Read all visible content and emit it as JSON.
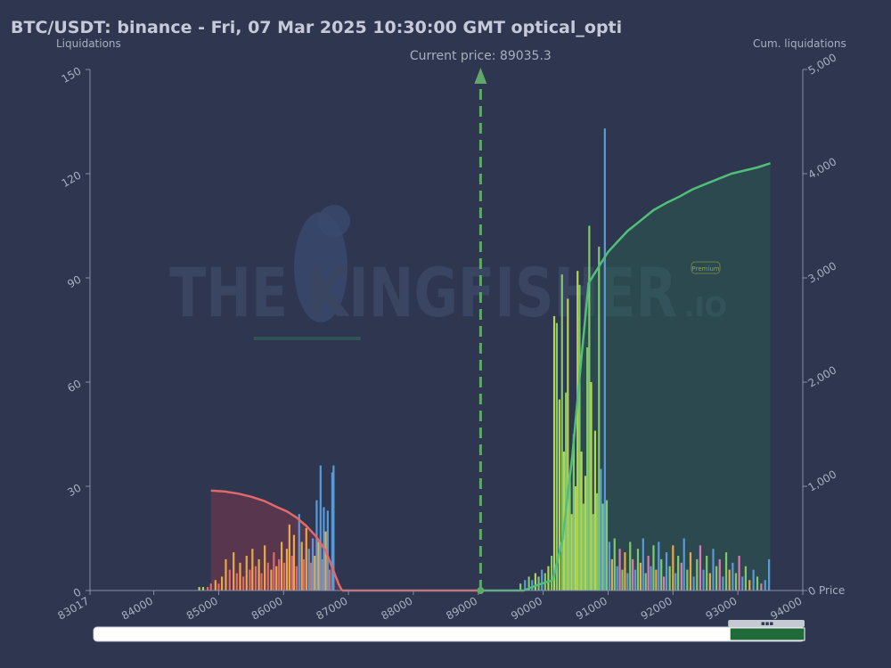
{
  "title": "BTC/USDT: binance - Fri, 07 Mar 2025 10:30:00 GMT optical_opti",
  "current_price_label": "Current price: 89035.3",
  "watermark": {
    "main": "THE KINGFISHER",
    "suffix": ".IO",
    "badge": "Premium"
  },
  "colors": {
    "background": "#2e3650",
    "short_cum": "#e06a6a",
    "long_cum": "#4fbf7a",
    "arrow": "#5fa86a",
    "scrollbar_thumb": "#1f6b3a"
  },
  "chart_data": {
    "type": "bar",
    "xlabel": "Price",
    "ylabel_left": "Liquidations",
    "ylabel_right": "Cum. liquidations",
    "xlim": [
      83017,
      94000
    ],
    "ylim_left": [
      0,
      150
    ],
    "ylim_right": [
      0,
      5000
    ],
    "x_ticks": [
      "83017",
      "84000",
      "85000",
      "86000",
      "87000",
      "88000",
      "89000",
      "90000",
      "91000",
      "92000",
      "93000",
      "94000"
    ],
    "y_left_ticks": [
      "0",
      "30",
      "60",
      "90",
      "120",
      "150"
    ],
    "y_right_ticks": [
      "0",
      "1,000",
      "2,000",
      "3,000",
      "4,000",
      "5,000"
    ],
    "current_price": 89035.3,
    "bars": [
      {
        "x": 84700,
        "y": 1,
        "c": "#b4d455"
      },
      {
        "x": 84760,
        "y": 1,
        "c": "#b4d455"
      },
      {
        "x": 84830,
        "y": 1,
        "c": "#e06a6a"
      },
      {
        "x": 84880,
        "y": 2,
        "c": "#e06a6a"
      },
      {
        "x": 84950,
        "y": 3,
        "c": "#e8a94a"
      },
      {
        "x": 85000,
        "y": 2,
        "c": "#e06a6a"
      },
      {
        "x": 85050,
        "y": 4,
        "c": "#e8a94a"
      },
      {
        "x": 85110,
        "y": 9,
        "c": "#e8a94a"
      },
      {
        "x": 85170,
        "y": 6,
        "c": "#e06a6a"
      },
      {
        "x": 85230,
        "y": 11,
        "c": "#e8a94a"
      },
      {
        "x": 85280,
        "y": 5,
        "c": "#e06a6a"
      },
      {
        "x": 85330,
        "y": 8,
        "c": "#e8a94a"
      },
      {
        "x": 85380,
        "y": 4,
        "c": "#e06a6a"
      },
      {
        "x": 85430,
        "y": 10,
        "c": "#e8a94a"
      },
      {
        "x": 85480,
        "y": 6,
        "c": "#e06a6a"
      },
      {
        "x": 85520,
        "y": 12,
        "c": "#e8a94a"
      },
      {
        "x": 85570,
        "y": 7,
        "c": "#e06a6a"
      },
      {
        "x": 85620,
        "y": 9,
        "c": "#e8a94a"
      },
      {
        "x": 85660,
        "y": 5,
        "c": "#e06a6a"
      },
      {
        "x": 85710,
        "y": 13,
        "c": "#e8a94a"
      },
      {
        "x": 85760,
        "y": 8,
        "c": "#e06a6a"
      },
      {
        "x": 85810,
        "y": 6,
        "c": "#e8a94a"
      },
      {
        "x": 85850,
        "y": 11,
        "c": "#e06a6a"
      },
      {
        "x": 85890,
        "y": 7,
        "c": "#e8a94a"
      },
      {
        "x": 85930,
        "y": 9,
        "c": "#e06a6a"
      },
      {
        "x": 85970,
        "y": 14,
        "c": "#e8a94a"
      },
      {
        "x": 86010,
        "y": 8,
        "c": "#e06a6a"
      },
      {
        "x": 86050,
        "y": 12,
        "c": "#e8a94a"
      },
      {
        "x": 86090,
        "y": 19,
        "c": "#e8a94a"
      },
      {
        "x": 86130,
        "y": 10,
        "c": "#e06a6a"
      },
      {
        "x": 86160,
        "y": 16,
        "c": "#e8a94a"
      },
      {
        "x": 86200,
        "y": 7,
        "c": "#e06a6a"
      },
      {
        "x": 86240,
        "y": 22,
        "c": "#5b9bd5"
      },
      {
        "x": 86280,
        "y": 14,
        "c": "#e8a94a"
      },
      {
        "x": 86310,
        "y": 9,
        "c": "#e06a6a"
      },
      {
        "x": 86350,
        "y": 18,
        "c": "#e8a94a"
      },
      {
        "x": 86390,
        "y": 12,
        "c": "#5b9bd5"
      },
      {
        "x": 86420,
        "y": 8,
        "c": "#e06a6a"
      },
      {
        "x": 86450,
        "y": 15,
        "c": "#5b9bd5"
      },
      {
        "x": 86480,
        "y": 10,
        "c": "#e8a94a"
      },
      {
        "x": 86510,
        "y": 26,
        "c": "#5b9bd5"
      },
      {
        "x": 86540,
        "y": 14,
        "c": "#e8a94a"
      },
      {
        "x": 86570,
        "y": 36,
        "c": "#5b9bd5"
      },
      {
        "x": 86600,
        "y": 9,
        "c": "#e06a6a"
      },
      {
        "x": 86620,
        "y": 24,
        "c": "#5b9bd5"
      },
      {
        "x": 86650,
        "y": 17,
        "c": "#e8a94a"
      },
      {
        "x": 86680,
        "y": 23,
        "c": "#5b9bd5"
      },
      {
        "x": 86710,
        "y": 6,
        "c": "#e06a6a"
      },
      {
        "x": 86750,
        "y": 34,
        "c": "#5b9bd5"
      },
      {
        "x": 86770,
        "y": 36,
        "c": "#5b9bd5"
      },
      {
        "x": 89650,
        "y": 2,
        "c": "#82c870"
      },
      {
        "x": 89720,
        "y": 3,
        "c": "#5b9bd5"
      },
      {
        "x": 89780,
        "y": 4,
        "c": "#82c870"
      },
      {
        "x": 89830,
        "y": 3,
        "c": "#5b9bd5"
      },
      {
        "x": 89880,
        "y": 5,
        "c": "#b4d455"
      },
      {
        "x": 89930,
        "y": 4,
        "c": "#82c870"
      },
      {
        "x": 89980,
        "y": 6,
        "c": "#5b9bd5"
      },
      {
        "x": 90030,
        "y": 5,
        "c": "#82c870"
      },
      {
        "x": 90080,
        "y": 7,
        "c": "#b4d455"
      },
      {
        "x": 90130,
        "y": 10,
        "c": "#82c870"
      },
      {
        "x": 90170,
        "y": 79,
        "c": "#b4d455"
      },
      {
        "x": 90210,
        "y": 77,
        "c": "#82c870"
      },
      {
        "x": 90250,
        "y": 55,
        "c": "#b4d455"
      },
      {
        "x": 90290,
        "y": 91,
        "c": "#82c870"
      },
      {
        "x": 90320,
        "y": 40,
        "c": "#b4d455"
      },
      {
        "x": 90350,
        "y": 57,
        "c": "#82c870"
      },
      {
        "x": 90380,
        "y": 84,
        "c": "#b4d455"
      },
      {
        "x": 90410,
        "y": 33,
        "c": "#82c870"
      },
      {
        "x": 90440,
        "y": 22,
        "c": "#b4d455"
      },
      {
        "x": 90470,
        "y": 45,
        "c": "#82c870"
      },
      {
        "x": 90500,
        "y": 30,
        "c": "#b4d455"
      },
      {
        "x": 90530,
        "y": 92,
        "c": "#b4d455"
      },
      {
        "x": 90560,
        "y": 88,
        "c": "#82c870"
      },
      {
        "x": 90590,
        "y": 40,
        "c": "#b4d455"
      },
      {
        "x": 90620,
        "y": 25,
        "c": "#82c870"
      },
      {
        "x": 90650,
        "y": 33,
        "c": "#b4d455"
      },
      {
        "x": 90680,
        "y": 70,
        "c": "#82c870"
      },
      {
        "x": 90710,
        "y": 105,
        "c": "#82c870"
      },
      {
        "x": 90740,
        "y": 60,
        "c": "#b4d455"
      },
      {
        "x": 90770,
        "y": 22,
        "c": "#82c870"
      },
      {
        "x": 90800,
        "y": 46,
        "c": "#b4d455"
      },
      {
        "x": 90830,
        "y": 28,
        "c": "#82c870"
      },
      {
        "x": 90860,
        "y": 99,
        "c": "#82c870"
      },
      {
        "x": 90890,
        "y": 35,
        "c": "#5b9bd5"
      },
      {
        "x": 90920,
        "y": 25,
        "c": "#82c870"
      },
      {
        "x": 90950,
        "y": 133,
        "c": "#5b9bd5"
      },
      {
        "x": 90980,
        "y": 26,
        "c": "#82c870"
      },
      {
        "x": 91020,
        "y": 14,
        "c": "#5b9bd5"
      },
      {
        "x": 91060,
        "y": 9,
        "c": "#e8a94a"
      },
      {
        "x": 91100,
        "y": 15,
        "c": "#82c870"
      },
      {
        "x": 91140,
        "y": 7,
        "c": "#5b9bd5"
      },
      {
        "x": 91180,
        "y": 12,
        "c": "#d97bb5"
      },
      {
        "x": 91220,
        "y": 6,
        "c": "#82c870"
      },
      {
        "x": 91260,
        "y": 11,
        "c": "#e8a94a"
      },
      {
        "x": 91300,
        "y": 5,
        "c": "#5b9bd5"
      },
      {
        "x": 91340,
        "y": 14,
        "c": "#82c870"
      },
      {
        "x": 91380,
        "y": 9,
        "c": "#d97bb5"
      },
      {
        "x": 91420,
        "y": 6,
        "c": "#5b9bd5"
      },
      {
        "x": 91460,
        "y": 12,
        "c": "#82c870"
      },
      {
        "x": 91500,
        "y": 8,
        "c": "#e8a94a"
      },
      {
        "x": 91540,
        "y": 15,
        "c": "#5b9bd5"
      },
      {
        "x": 91580,
        "y": 5,
        "c": "#82c870"
      },
      {
        "x": 91620,
        "y": 10,
        "c": "#d97bb5"
      },
      {
        "x": 91660,
        "y": 7,
        "c": "#5b9bd5"
      },
      {
        "x": 91700,
        "y": 13,
        "c": "#82c870"
      },
      {
        "x": 91740,
        "y": 6,
        "c": "#e8a94a"
      },
      {
        "x": 91780,
        "y": 14,
        "c": "#5b9bd5"
      },
      {
        "x": 91820,
        "y": 9,
        "c": "#82c870"
      },
      {
        "x": 91860,
        "y": 4,
        "c": "#d97bb5"
      },
      {
        "x": 91900,
        "y": 11,
        "c": "#5b9bd5"
      },
      {
        "x": 91950,
        "y": 7,
        "c": "#82c870"
      },
      {
        "x": 92000,
        "y": 13,
        "c": "#e8a94a"
      },
      {
        "x": 92040,
        "y": 5,
        "c": "#5b9bd5"
      },
      {
        "x": 92080,
        "y": 10,
        "c": "#82c870"
      },
      {
        "x": 92130,
        "y": 8,
        "c": "#d97bb5"
      },
      {
        "x": 92170,
        "y": 15,
        "c": "#5b9bd5"
      },
      {
        "x": 92220,
        "y": 6,
        "c": "#82c870"
      },
      {
        "x": 92270,
        "y": 11,
        "c": "#e8a94a"
      },
      {
        "x": 92320,
        "y": 4,
        "c": "#5b9bd5"
      },
      {
        "x": 92370,
        "y": 9,
        "c": "#82c870"
      },
      {
        "x": 92420,
        "y": 13,
        "c": "#d97bb5"
      },
      {
        "x": 92470,
        "y": 6,
        "c": "#5b9bd5"
      },
      {
        "x": 92520,
        "y": 10,
        "c": "#82c870"
      },
      {
        "x": 92570,
        "y": 5,
        "c": "#e8a94a"
      },
      {
        "x": 92620,
        "y": 12,
        "c": "#5b9bd5"
      },
      {
        "x": 92670,
        "y": 7,
        "c": "#82c870"
      },
      {
        "x": 92720,
        "y": 9,
        "c": "#d97bb5"
      },
      {
        "x": 92770,
        "y": 4,
        "c": "#5b9bd5"
      },
      {
        "x": 92820,
        "y": 11,
        "c": "#82c870"
      },
      {
        "x": 92870,
        "y": 6,
        "c": "#e8a94a"
      },
      {
        "x": 92920,
        "y": 8,
        "c": "#5b9bd5"
      },
      {
        "x": 92970,
        "y": 5,
        "c": "#82c870"
      },
      {
        "x": 93020,
        "y": 10,
        "c": "#d97bb5"
      },
      {
        "x": 93070,
        "y": 4,
        "c": "#5b9bd5"
      },
      {
        "x": 93120,
        "y": 7,
        "c": "#82c870"
      },
      {
        "x": 93180,
        "y": 3,
        "c": "#e8a94a"
      },
      {
        "x": 93240,
        "y": 6,
        "c": "#5b9bd5"
      },
      {
        "x": 93300,
        "y": 4,
        "c": "#82c870"
      },
      {
        "x": 93360,
        "y": 2,
        "c": "#d97bb5"
      },
      {
        "x": 93420,
        "y": 3,
        "c": "#5b9bd5"
      },
      {
        "x": 93480,
        "y": 9,
        "c": "#5b9bd5"
      }
    ],
    "series": [
      {
        "color": "#e06a6a",
        "fill": "rgba(140,55,75,0.45)",
        "points": [
          [
            84880,
            960
          ],
          [
            85100,
            950
          ],
          [
            85300,
            930
          ],
          [
            85500,
            900
          ],
          [
            85700,
            860
          ],
          [
            85900,
            800
          ],
          [
            86050,
            760
          ],
          [
            86200,
            700
          ],
          [
            86350,
            620
          ],
          [
            86500,
            520
          ],
          [
            86650,
            380
          ],
          [
            86750,
            220
          ],
          [
            86850,
            60
          ],
          [
            86900,
            0
          ]
        ]
      },
      {
        "color": "#4fbf7a",
        "fill": "rgba(40,110,80,0.35)",
        "points": [
          [
            89035,
            0
          ],
          [
            89700,
            0
          ],
          [
            89900,
            50
          ],
          [
            90150,
            100
          ],
          [
            90300,
            500
          ],
          [
            90450,
            1300
          ],
          [
            90600,
            2300
          ],
          [
            90700,
            2950
          ],
          [
            90800,
            3050
          ],
          [
            90900,
            3150
          ],
          [
            91000,
            3250
          ],
          [
            91150,
            3350
          ],
          [
            91300,
            3450
          ],
          [
            91500,
            3550
          ],
          [
            91700,
            3650
          ],
          [
            91900,
            3720
          ],
          [
            92100,
            3780
          ],
          [
            92300,
            3850
          ],
          [
            92500,
            3900
          ],
          [
            92700,
            3950
          ],
          [
            92900,
            4000
          ],
          [
            93100,
            4030
          ],
          [
            93300,
            4060
          ],
          [
            93500,
            4100
          ]
        ]
      }
    ],
    "scrollbar": {
      "window_start": 0.895,
      "window_end": 1.0
    }
  }
}
